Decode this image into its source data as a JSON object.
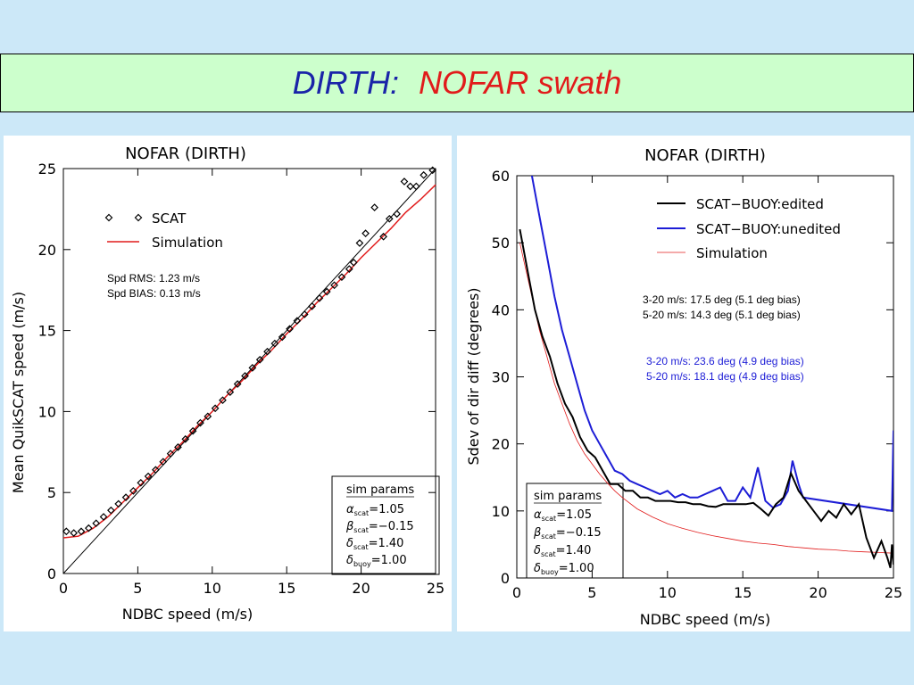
{
  "page_title": {
    "part1": "DIRTH:",
    "part2": "NOFAR swath"
  },
  "chart_data": [
    {
      "type": "scatter",
      "title": "NOFAR (DIRTH)",
      "xlabel": "NDBC speed (m/s)",
      "ylabel": "Mean QuikSCAT speed (m/s)",
      "xlim": [
        0,
        25
      ],
      "ylim": [
        0,
        25
      ],
      "xticks": [
        "0",
        "5",
        "10",
        "15",
        "20",
        "25"
      ],
      "yticks": [
        "0",
        "5",
        "10",
        "15",
        "20",
        "25"
      ],
      "legend": {
        "position": "upper-left",
        "entries": [
          "SCAT",
          "Simulation"
        ]
      },
      "annotations": [
        "Spd RMS:  1.23 m/s",
        "Spd BIAS:  0.13 m/s"
      ],
      "params": {
        "title": "sim params",
        "rows": [
          {
            "sym": "α",
            "sub": "scat",
            "val": "=1.05"
          },
          {
            "sym": "β",
            "sub": "scat",
            "val": "=−0.15"
          },
          {
            "sym": "δ",
            "sub": "scat",
            "val": "=1.40"
          },
          {
            "sym": "δ",
            "sub": "buoy",
            "val": "=1.00"
          }
        ]
      },
      "colors": {
        "scat": "#000000",
        "simulation": "#e11b1b"
      },
      "series": [
        {
          "name": "SCAT",
          "marker": "diamond",
          "x": [
            0.2,
            0.7,
            1.2,
            1.7,
            2.2,
            2.7,
            3.2,
            3.7,
            4.2,
            4.7,
            5.2,
            5.7,
            6.2,
            6.7,
            7.2,
            7.7,
            8.2,
            8.7,
            9.2,
            9.7,
            10.2,
            10.7,
            11.2,
            11.7,
            12.2,
            12.7,
            13.2,
            13.7,
            14.2,
            14.7,
            15.2,
            15.7,
            16.2,
            16.7,
            17.2,
            17.7,
            18.2,
            18.7,
            19.2,
            19.5,
            19.9,
            20.3,
            20.9,
            21.5,
            21.9,
            22.4,
            22.9,
            23.3,
            23.7,
            24.2,
            24.8
          ],
          "y": [
            2.6,
            2.5,
            2.6,
            2.8,
            3.1,
            3.5,
            3.9,
            4.3,
            4.7,
            5.1,
            5.6,
            6.0,
            6.4,
            6.9,
            7.4,
            7.8,
            8.3,
            8.8,
            9.3,
            9.7,
            10.2,
            10.7,
            11.2,
            11.7,
            12.2,
            12.7,
            13.2,
            13.7,
            14.2,
            14.6,
            15.1,
            15.6,
            16.0,
            16.5,
            17.0,
            17.4,
            17.8,
            18.3,
            18.8,
            19.2,
            20.4,
            21.0,
            22.6,
            20.8,
            21.9,
            22.2,
            24.2,
            23.9,
            23.9,
            24.6,
            24.9
          ]
        },
        {
          "name": "Simulation",
          "x": [
            0,
            1,
            2,
            3,
            4,
            5,
            6,
            7,
            8,
            9,
            10,
            11,
            12,
            13,
            14,
            15,
            16,
            17,
            18,
            19,
            20,
            21,
            22,
            23,
            24,
            25
          ],
          "y": [
            2.2,
            2.3,
            2.8,
            3.5,
            4.4,
            5.3,
            6.2,
            7.2,
            8.1,
            9.1,
            10.0,
            11.0,
            11.9,
            12.9,
            13.8,
            14.8,
            15.7,
            16.7,
            17.6,
            18.5,
            19.5,
            20.4,
            21.3,
            22.3,
            23.1,
            24.0
          ]
        }
      ],
      "reference_line": {
        "from": [
          0,
          0
        ],
        "to": [
          25,
          25
        ]
      }
    },
    {
      "type": "line",
      "title": "NOFAR (DIRTH)",
      "xlabel": "NDBC speed (m/s)",
      "ylabel": "Sdev of dir diff (degrees)",
      "xlim": [
        0,
        25
      ],
      "ylim": [
        0,
        60
      ],
      "xticks": [
        "0",
        "5",
        "10",
        "15",
        "20",
        "25"
      ],
      "yticks": [
        "0",
        "10",
        "20",
        "30",
        "40",
        "50",
        "60"
      ],
      "legend": {
        "position": "upper-right",
        "entries": [
          "SCAT−BUOY:edited",
          "SCAT−BUOY:unedited",
          "Simulation"
        ]
      },
      "annotations_black": [
        "3-20 m/s:  17.5 deg  (5.1 deg bias)",
        "5-20 m/s:  14.3 deg  (5.1 deg bias)"
      ],
      "annotations_blue": [
        "3-20 m/s:  23.6 deg  (4.9 deg bias)",
        "5-20 m/s:  18.1 deg  (4.9 deg bias)"
      ],
      "params": {
        "title": "sim params",
        "rows": [
          {
            "sym": "α",
            "sub": "scat",
            "val": "=1.05"
          },
          {
            "sym": "β",
            "sub": "scat",
            "val": "=−0.15"
          },
          {
            "sym": "δ",
            "sub": "scat",
            "val": "=1.40"
          },
          {
            "sym": "δ",
            "sub": "buoy",
            "val": "=1.00"
          }
        ]
      },
      "colors": {
        "edited": "#000000",
        "unedited": "#1d1dd6",
        "simulation": "#e11b1b"
      },
      "series": [
        {
          "name": "SCAT−BUOY:edited",
          "x": [
            0.2,
            0.7,
            1.2,
            1.7,
            2.2,
            2.7,
            3.2,
            3.7,
            4.2,
            4.7,
            5.2,
            5.7,
            6.2,
            6.7,
            7.2,
            7.7,
            8.2,
            8.7,
            9.2,
            9.7,
            10.2,
            10.7,
            11.2,
            11.7,
            12.2,
            12.7,
            13.2,
            13.7,
            14.2,
            14.7,
            15.2,
            15.7,
            16.2,
            16.7,
            17.2,
            17.7,
            18.2,
            18.7,
            19.2,
            19.7,
            20.2,
            20.7,
            21.2,
            21.7,
            22.2,
            22.7,
            23.2,
            23.7,
            24.2,
            24.6,
            24.8,
            24.9,
            25.0
          ],
          "y": [
            52,
            46,
            40,
            36,
            33,
            29,
            26,
            24,
            21,
            19,
            18,
            16,
            14,
            14,
            13,
            13,
            12,
            12,
            11.5,
            11.5,
            11.5,
            11.3,
            11.3,
            11,
            11,
            10.7,
            10.6,
            11,
            11,
            11,
            11,
            11.2,
            10.3,
            9.3,
            11,
            12,
            15.6,
            13,
            11.5,
            10,
            8.5,
            10,
            9,
            11,
            9.5,
            11,
            6,
            3,
            5.5,
            3,
            1.5,
            5,
            2
          ]
        },
        {
          "name": "SCAT−BUOY:unedited",
          "x": [
            1.0,
            1.5,
            2.0,
            2.5,
            3.0,
            3.5,
            4.0,
            4.5,
            5.0,
            5.5,
            6.0,
            6.5,
            7.0,
            7.5,
            8.0,
            8.5,
            9.0,
            9.5,
            10.0,
            10.5,
            11.0,
            11.5,
            12.0,
            12.5,
            13.0,
            13.5,
            14.0,
            14.5,
            15.0,
            15.5,
            16.0,
            16.5,
            17.0,
            17.5,
            18.0,
            18.3,
            18.7,
            19.0,
            24.9,
            25.0
          ],
          "y": [
            60,
            54,
            48,
            42,
            37,
            33,
            29,
            25,
            22,
            20,
            18,
            16,
            15.5,
            14.5,
            14,
            13.5,
            13,
            12.5,
            13,
            12,
            12.5,
            12,
            12,
            12.5,
            13,
            13.5,
            11.5,
            11.5,
            13.5,
            12,
            16.5,
            11.5,
            10.5,
            11,
            13,
            17.5,
            14,
            12,
            10,
            22
          ]
        },
        {
          "name": "Simulation",
          "x": [
            0.2,
            0.5,
            1,
            1.5,
            2,
            2.5,
            3,
            3.5,
            4,
            4.5,
            5,
            5.5,
            6,
            6.5,
            7,
            8,
            9,
            10,
            11,
            12,
            13,
            14,
            15,
            16,
            17,
            18,
            19,
            20,
            21,
            22,
            23,
            24,
            25
          ],
          "y": [
            50,
            47,
            42,
            37,
            33,
            29,
            26,
            23,
            20.5,
            18.5,
            17,
            15.5,
            14.2,
            13,
            12,
            10.3,
            9.1,
            8.1,
            7.4,
            6.8,
            6.3,
            5.9,
            5.5,
            5.2,
            5.0,
            4.7,
            4.5,
            4.3,
            4.2,
            4.0,
            3.9,
            3.8,
            3.7
          ]
        }
      ]
    }
  ]
}
